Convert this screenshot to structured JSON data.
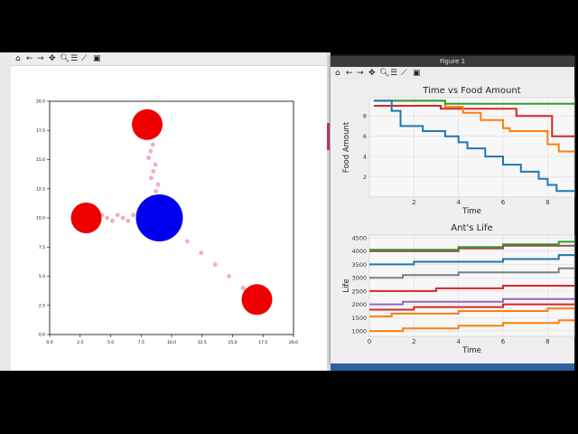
{
  "left_window": {
    "toolbar_icons": [
      "home-icon",
      "back-arrow-icon",
      "forward-arrow-icon",
      "pan-icon",
      "zoom-icon",
      "configure-icon",
      "edit-curve-icon",
      "save-icon"
    ],
    "plot": {
      "xlim": [
        0,
        20
      ],
      "ylim": [
        0,
        20
      ],
      "xticks": [
        "0.0",
        "2.5",
        "5.0",
        "7.5",
        "10.0",
        "12.5",
        "15.0",
        "17.5",
        "20.0"
      ],
      "yticks": [
        "0.0",
        "2.5",
        "5.0",
        "7.5",
        "10.0",
        "12.5",
        "15.0",
        "17.5",
        "20.0"
      ],
      "nest": {
        "x": 9,
        "y": 10,
        "color": "#0000ee"
      },
      "food_sources": [
        {
          "x": 8,
          "y": 18,
          "color": "#ee0000"
        },
        {
          "x": 3,
          "y": 10,
          "color": "#ee0000"
        },
        {
          "x": 17,
          "y": 3,
          "color": "#ee0000"
        }
      ],
      "ant_color": "#f0a0b8"
    }
  },
  "right_window": {
    "title": "Figure 1",
    "toolbar_icons": [
      "home-icon",
      "back-arrow-icon",
      "forward-arrow-icon",
      "pan-icon",
      "zoom-icon",
      "configure-icon",
      "edit-curve-icon",
      "save-icon"
    ]
  },
  "chart_data": [
    {
      "type": "line",
      "title": "Time vs Food Amount",
      "xlabel": "Time",
      "ylabel": "Food Amount",
      "xticks": [
        2,
        4,
        6,
        8
      ],
      "yticks": [
        2,
        4,
        6,
        8
      ],
      "xlim": [
        0,
        9.2
      ],
      "ylim": [
        0,
        9.8
      ],
      "grid": true,
      "series": [
        {
          "color": "#d62728",
          "points": [
            [
              0.2,
              9
            ],
            [
              3.2,
              9
            ],
            [
              3.2,
              8.7
            ],
            [
              6.6,
              8.7
            ],
            [
              6.6,
              8
            ],
            [
              8.2,
              8
            ],
            [
              8.2,
              6
            ],
            [
              9.2,
              6
            ]
          ]
        },
        {
          "color": "#ff7f0e",
          "points": [
            [
              0.2,
              9.5
            ],
            [
              3.4,
              9.5
            ],
            [
              3.4,
              8.9
            ],
            [
              4.2,
              8.9
            ],
            [
              4.2,
              8.3
            ],
            [
              5,
              8.3
            ],
            [
              5,
              7.6
            ],
            [
              6,
              7.6
            ],
            [
              6,
              6.8
            ],
            [
              6.3,
              6.8
            ],
            [
              6.3,
              6.5
            ],
            [
              8,
              6.5
            ],
            [
              8,
              5.2
            ],
            [
              8.5,
              5.2
            ],
            [
              8.5,
              4.5
            ],
            [
              9.2,
              4.5
            ]
          ]
        },
        {
          "color": "#2ca02c",
          "points": [
            [
              0.2,
              9.5
            ],
            [
              3.4,
              9.5
            ],
            [
              3.4,
              9.2
            ],
            [
              9.2,
              9.2
            ]
          ]
        },
        {
          "color": "#1f77b4",
          "points": [
            [
              0.2,
              9.5
            ],
            [
              1,
              9.5
            ],
            [
              1,
              8.5
            ],
            [
              1.4,
              8.5
            ],
            [
              1.4,
              7
            ],
            [
              2.4,
              7
            ],
            [
              2.4,
              6.5
            ],
            [
              3.4,
              6.5
            ],
            [
              3.4,
              6
            ],
            [
              4,
              6
            ],
            [
              4,
              5.4
            ],
            [
              4.4,
              5.4
            ],
            [
              4.4,
              4.8
            ],
            [
              5.2,
              4.8
            ],
            [
              5.2,
              4
            ],
            [
              6,
              4
            ],
            [
              6,
              3.2
            ],
            [
              6.8,
              3.2
            ],
            [
              6.8,
              2.5
            ],
            [
              7.6,
              2.5
            ],
            [
              7.6,
              1.8
            ],
            [
              8,
              1.8
            ],
            [
              8,
              1.2
            ],
            [
              8.4,
              1.2
            ],
            [
              8.4,
              0.6
            ],
            [
              9.2,
              0.6
            ]
          ]
        }
      ]
    },
    {
      "type": "line",
      "title": "Ant's Life",
      "xlabel": "Time",
      "ylabel": "Life",
      "xticks": [
        0,
        2,
        4,
        6,
        8
      ],
      "yticks": [
        1000,
        1500,
        2000,
        2500,
        3000,
        3500,
        4000,
        4500
      ],
      "xlim": [
        0,
        9.2
      ],
      "ylim": [
        800,
        4600
      ],
      "grid": true,
      "series": [
        {
          "color": "#2ca02c",
          "points": [
            [
              0,
              4050
            ],
            [
              4,
              4050
            ],
            [
              4,
              4150
            ],
            [
              6,
              4150
            ],
            [
              6,
              4250
            ],
            [
              8.5,
              4250
            ],
            [
              8.5,
              4350
            ],
            [
              9.2,
              4350
            ]
          ]
        },
        {
          "color": "#8c564b",
          "points": [
            [
              0,
              4000
            ],
            [
              4,
              4000
            ],
            [
              4,
              4100
            ],
            [
              6,
              4100
            ],
            [
              6,
              4200
            ],
            [
              9.2,
              4200
            ]
          ]
        },
        {
          "color": "#1f77b4",
          "points": [
            [
              0,
              3500
            ],
            [
              2,
              3500
            ],
            [
              2,
              3600
            ],
            [
              6,
              3600
            ],
            [
              6,
              3700
            ],
            [
              8.5,
              3700
            ],
            [
              8.5,
              3850
            ],
            [
              9.2,
              3850
            ]
          ]
        },
        {
          "color": "#7f7f7f",
          "points": [
            [
              0,
              3000
            ],
            [
              1.5,
              3000
            ],
            [
              1.5,
              3100
            ],
            [
              4,
              3100
            ],
            [
              4,
              3200
            ],
            [
              8.5,
              3200
            ],
            [
              8.5,
              3350
            ],
            [
              9.2,
              3350
            ]
          ]
        },
        {
          "color": "#d62728",
          "points": [
            [
              0,
              2500
            ],
            [
              3,
              2500
            ],
            [
              3,
              2600
            ],
            [
              6,
              2600
            ],
            [
              6,
              2700
            ],
            [
              9.2,
              2700
            ]
          ]
        },
        {
          "color": "#9467bd",
          "points": [
            [
              0,
              2000
            ],
            [
              1.5,
              2000
            ],
            [
              1.5,
              2100
            ],
            [
              6,
              2100
            ],
            [
              6,
              2200
            ],
            [
              9.2,
              2200
            ]
          ]
        },
        {
          "color": "#d62728",
          "points": [
            [
              0,
              1800
            ],
            [
              2,
              1800
            ],
            [
              2,
              1900
            ],
            [
              6,
              1900
            ],
            [
              6,
              2000
            ],
            [
              9.2,
              2000
            ]
          ]
        },
        {
          "color": "#ff7f0e",
          "points": [
            [
              0,
              1550
            ],
            [
              1,
              1550
            ],
            [
              1,
              1650
            ],
            [
              4,
              1650
            ],
            [
              4,
              1750
            ],
            [
              8,
              1750
            ],
            [
              8,
              1850
            ],
            [
              9.2,
              1850
            ]
          ]
        },
        {
          "color": "#ff7f0e",
          "points": [
            [
              0,
              1000
            ],
            [
              1.5,
              1000
            ],
            [
              1.5,
              1100
            ],
            [
              4,
              1100
            ],
            [
              4,
              1200
            ],
            [
              6,
              1200
            ],
            [
              6,
              1300
            ],
            [
              8.5,
              1300
            ],
            [
              8.5,
              1400
            ],
            [
              9.2,
              1400
            ]
          ]
        }
      ]
    }
  ]
}
